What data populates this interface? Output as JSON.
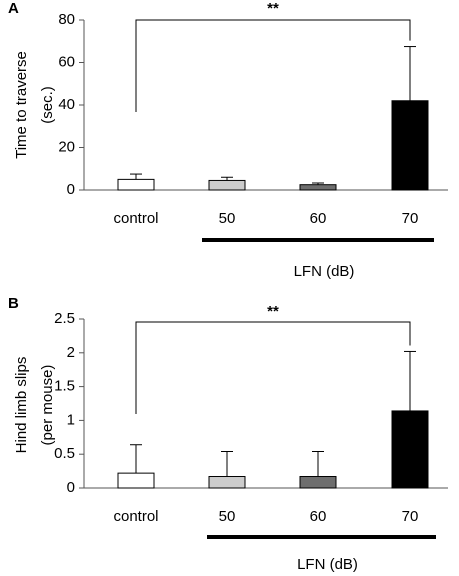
{
  "chart_data": [
    {
      "type": "bar",
      "panel_label": "A",
      "ylabel": "Time to traverse\n(sec.)",
      "ylim": [
        0,
        80
      ],
      "yticks": [
        "0",
        "20",
        "40",
        "60",
        "80"
      ],
      "categories": [
        "control",
        "50",
        "60",
        "70"
      ],
      "values": [
        5,
        4.5,
        2.5,
        42
      ],
      "errors": [
        2.5,
        1.5,
        0.8,
        25.5
      ],
      "bar_colors": [
        "#ffffff",
        "#cccccc",
        "#6e6e6e",
        "#000000"
      ],
      "significance": {
        "label": "**",
        "from": "control",
        "to": "70"
      },
      "group_label": "LFN (dB)",
      "grid": false
    },
    {
      "type": "bar",
      "panel_label": "B",
      "ylabel": "Hind limb slips\n(per mouse)",
      "ylim": [
        0,
        2.5
      ],
      "yticks": [
        "0",
        "0.5",
        "1",
        "1.5",
        "2",
        "2.5"
      ],
      "categories": [
        "control",
        "50",
        "60",
        "70"
      ],
      "values": [
        0.22,
        0.17,
        0.17,
        1.14
      ],
      "errors": [
        0.42,
        0.37,
        0.37,
        0.88
      ],
      "bar_colors": [
        "#ffffff",
        "#cccccc",
        "#6e6e6e",
        "#000000"
      ],
      "significance": {
        "label": "**",
        "from": "control",
        "to": "70"
      },
      "group_label": "LFN (dB)",
      "grid": false
    }
  ]
}
